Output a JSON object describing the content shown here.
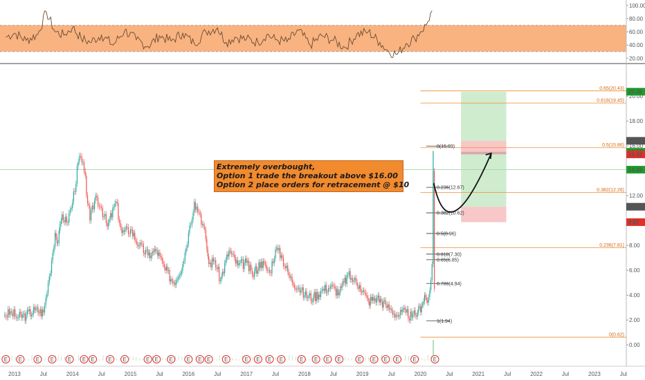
{
  "chart_data": [
    {
      "type": "line",
      "title": "",
      "series": [
        {
          "x": [
            2012.85,
            2013.0,
            2013.2,
            2013.4,
            2013.55,
            2013.7,
            2013.85,
            2014.0,
            2014.15,
            2014.3,
            2014.5,
            2014.7,
            2014.9,
            2015.1,
            2015.3,
            2015.5,
            2015.7,
            2015.9,
            2016.1,
            2016.3,
            2016.5,
            2016.65,
            2016.8,
            2017.0,
            2017.2,
            2017.35,
            2017.5,
            2017.7,
            2017.9,
            2018.1,
            2018.3,
            2018.5,
            2018.7,
            2018.9,
            2019.1,
            2019.3,
            2019.45,
            2019.6,
            2019.75,
            2019.9,
            2020.0,
            2020.1,
            2020.2
          ],
          "values": [
            52,
            58,
            47,
            56,
            90,
            60,
            55,
            67,
            50,
            44,
            55,
            40,
            62,
            48,
            38,
            54,
            46,
            58,
            42,
            60,
            66,
            44,
            52,
            49,
            44,
            56,
            48,
            45,
            62,
            40,
            54,
            47,
            36,
            56,
            60,
            44,
            30,
            26,
            42,
            50,
            60,
            70,
            92
          ]
        }
      ],
      "ylim": [
        14,
        104
      ],
      "band": [
        30,
        70
      ],
      "yticks": [
        "100.00",
        "80.00",
        "60.00",
        "40.00",
        "20.00"
      ],
      "ytick_values": [
        100,
        80,
        60,
        40,
        20
      ]
    },
    {
      "type": "line",
      "title": "",
      "series": [
        {
          "x": [
            2012.83,
            2012.95,
            2013.05,
            2013.2,
            2013.35,
            2013.5,
            2013.6,
            2013.7,
            2013.75,
            2013.82,
            2013.9,
            2014.0,
            2014.12,
            2014.2,
            2014.3,
            2014.4,
            2014.5,
            2014.6,
            2014.75,
            2014.85,
            2015.0,
            2015.15,
            2015.3,
            2015.45,
            2015.6,
            2015.75,
            2015.9,
            2016.0,
            2016.1,
            2016.2,
            2016.3,
            2016.35,
            2016.45,
            2016.55,
            2016.7,
            2016.85,
            2017.0,
            2017.1,
            2017.25,
            2017.4,
            2017.5,
            2017.6,
            2017.75,
            2017.9,
            2018.0,
            2018.15,
            2018.3,
            2018.45,
            2018.6,
            2018.75,
            2018.85,
            2018.95,
            2019.1,
            2019.25,
            2019.4,
            2019.5,
            2019.6,
            2019.75,
            2019.85,
            2019.95,
            2020.02,
            2020.07,
            2020.12,
            2020.16,
            2020.2,
            2020.22,
            2020.24
          ],
          "values": [
            2.4,
            2.6,
            2.2,
            2.4,
            2.8,
            2.6,
            5.5,
            9.0,
            8.2,
            10.5,
            9.8,
            11.5,
            15.2,
            14.0,
            10.0,
            12.0,
            11.0,
            9.5,
            11.5,
            9.0,
            9.3,
            8.0,
            7.2,
            7.6,
            6.0,
            5.0,
            6.5,
            9.0,
            11.5,
            10.5,
            8.5,
            6.5,
            6.8,
            5.2,
            7.6,
            6.4,
            6.6,
            5.6,
            6.7,
            5.8,
            7.7,
            7.2,
            5.4,
            4.6,
            4.0,
            3.8,
            4.4,
            4.7,
            4.2,
            5.6,
            5.2,
            4.8,
            3.5,
            3.8,
            3.2,
            2.8,
            2.4,
            2.6,
            2.2,
            2.6,
            3.2,
            4.0,
            3.4,
            4.4,
            6.5,
            14.0,
            4.5
          ]
        }
      ],
      "ylim": [
        -1.6,
        22.4
      ],
      "yticks": [
        "20.00",
        "18.00",
        "16.00",
        "14.00",
        "12.00",
        "10.00",
        "8.00",
        "6.00",
        "4.00",
        "2.00",
        "0.00"
      ],
      "ytick_values": [
        20,
        18,
        16,
        14,
        12,
        10,
        8,
        6,
        4,
        2,
        0
      ],
      "xticks": [
        "2013",
        "Jul",
        "2014",
        "Jul",
        "2015",
        "Jul",
        "2016",
        "Jul",
        "2017",
        "Jul",
        "2018",
        "Jul",
        "2019",
        "Jul",
        "2020",
        "Jul",
        "2021",
        "Jul",
        "2022",
        "Jul",
        "2023",
        "Jul"
      ],
      "xtick_values": [
        2013.0,
        2013.5,
        2014.0,
        2014.5,
        2015.0,
        2015.5,
        2016.0,
        2016.5,
        2017.0,
        2017.5,
        2018.0,
        2018.5,
        2019.0,
        2019.5,
        2020.0,
        2020.5,
        2021.0,
        2021.5,
        2022.0,
        2022.5,
        2023.0,
        2023.5
      ],
      "xlim": [
        2012.75,
        2023.55
      ],
      "fib_left": [
        {
          "label": "0(15.99)",
          "value": 15.99
        },
        {
          "label": "0.236(12.67)",
          "value": 12.67
        },
        {
          "label": "0.382(10.62)",
          "value": 10.62
        },
        {
          "label": "0.5(8.96)",
          "value": 8.96
        },
        {
          "label": "0.618(7.30)",
          "value": 7.3
        },
        {
          "label": "0.65(6.85)",
          "value": 6.85
        },
        {
          "label": "0.786(4.94)",
          "value": 4.94
        },
        {
          "label": "1(1.94)",
          "value": 1.94
        }
      ],
      "fib_right": [
        {
          "label": "0.65(20.43)",
          "value": 20.43
        },
        {
          "label": "0.618(19.45)",
          "value": 19.45
        },
        {
          "label": "0.5(15.86)",
          "value": 15.86
        },
        {
          "label": "0.382(12.26)",
          "value": 12.26
        },
        {
          "label": "0.236(7.81)",
          "value": 7.81
        },
        {
          "label": "0(0.62)",
          "value": 0.62
        }
      ],
      "price_tags": [
        {
          "label": "20.36",
          "value": 20.36,
          "color": "#1a9e2a"
        },
        {
          "label": "16.41",
          "value": 16.41,
          "color": "#555555"
        },
        {
          "label": "15.53",
          "value": 15.53,
          "color": "#1a9e2a"
        },
        {
          "label": "15.32",
          "value": 15.32,
          "color": "#e0302a"
        },
        {
          "label": "14.09",
          "value": 14.09,
          "color": "#1a9e2a"
        },
        {
          "label": "11.11",
          "value": 11.11,
          "color": "#555555"
        },
        {
          "label": "9.87",
          "value": 9.87,
          "color": "#e0302a"
        }
      ],
      "reference_line": 14.09,
      "position": {
        "x_start": 2020.7,
        "x_end": 2021.48,
        "target": 20.36,
        "entry": 15.53,
        "entry_low": 15.32,
        "stop_zone_top": 16.41,
        "green_low": 11.11,
        "stop": 9.87
      },
      "curve_path": [
        [
          2020.23,
          13.0
        ],
        [
          2020.45,
          9.5
        ],
        [
          2020.9,
          12.5
        ],
        [
          2021.22,
          15.4
        ]
      ],
      "earnings_marker": "E",
      "earnings_x": [
        2012.85,
        2013.1,
        2013.4,
        2013.65,
        2013.95,
        2014.2,
        2014.35,
        2014.65,
        2014.9,
        2015.3,
        2015.45,
        2015.7,
        2016.0,
        2016.2,
        2016.35,
        2016.65,
        2017.0,
        2017.2,
        2017.4,
        2017.6,
        2017.95,
        2018.2,
        2018.4,
        2018.6,
        2018.95,
        2019.2,
        2019.4,
        2019.6,
        2019.9,
        2020.25
      ],
      "colors": {
        "up": "#26a69a",
        "down": "#ef5350",
        "band": "#f7a66b",
        "fib": "#f28a2e"
      }
    }
  ],
  "annotation": {
    "lines": [
      "Extremely overbought,",
      "Option 1 trade the breakout above $16.00",
      "Option 2 place orders for retracement @ $10"
    ]
  }
}
